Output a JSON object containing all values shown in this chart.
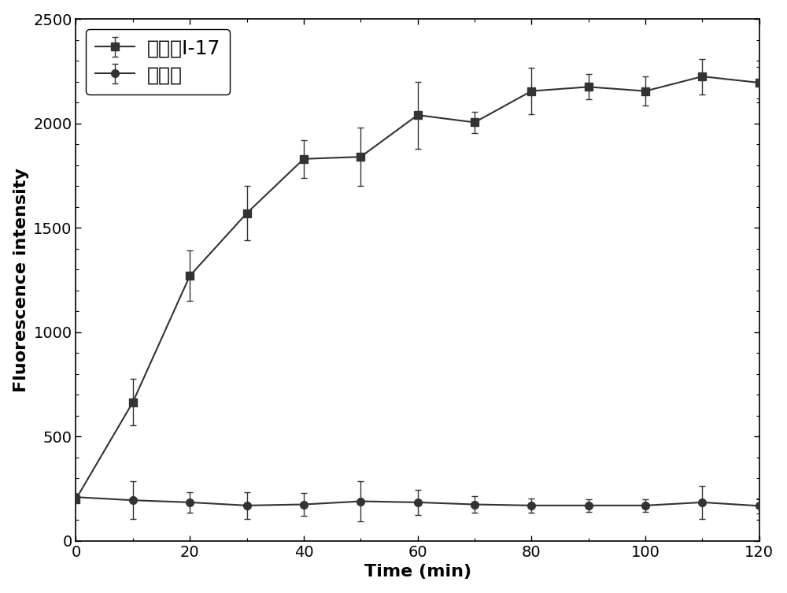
{
  "title": "",
  "xlabel": "Time (min)",
  "ylabel": "Fluorescence intensity",
  "xlim": [
    0,
    120
  ],
  "ylim": [
    0,
    2500
  ],
  "xticks_major": [
    0,
    20,
    40,
    60,
    80,
    100,
    120
  ],
  "yticks_major": [
    0,
    500,
    1000,
    1500,
    2000,
    2500
  ],
  "series1_label": "化合物I-17",
  "series2_label": "空白组",
  "series1_x": [
    0,
    10,
    20,
    30,
    40,
    50,
    60,
    70,
    80,
    90,
    100,
    110,
    120
  ],
  "series1_y": [
    200,
    665,
    1270,
    1570,
    1830,
    1840,
    2040,
    2005,
    2155,
    2175,
    2155,
    2225,
    2195
  ],
  "series1_yerr": [
    0,
    110,
    120,
    130,
    90,
    140,
    160,
    50,
    110,
    60,
    70,
    85,
    75
  ],
  "series2_x": [
    0,
    10,
    20,
    30,
    40,
    50,
    60,
    70,
    80,
    90,
    100,
    110,
    120
  ],
  "series2_y": [
    210,
    195,
    185,
    170,
    175,
    190,
    185,
    175,
    170,
    170,
    170,
    185,
    168
  ],
  "series2_yerr": [
    0,
    90,
    50,
    65,
    55,
    95,
    60,
    40,
    35,
    30,
    30,
    80,
    35
  ],
  "line_color": "#333333",
  "marker_square": "s",
  "marker_circle": "o",
  "markersize": 7,
  "linewidth": 1.5,
  "capsize": 3,
  "elinewidth": 1.0,
  "legend_fontsize": 18,
  "axis_label_fontsize": 16,
  "tick_fontsize": 14,
  "background_color": "#ffffff"
}
